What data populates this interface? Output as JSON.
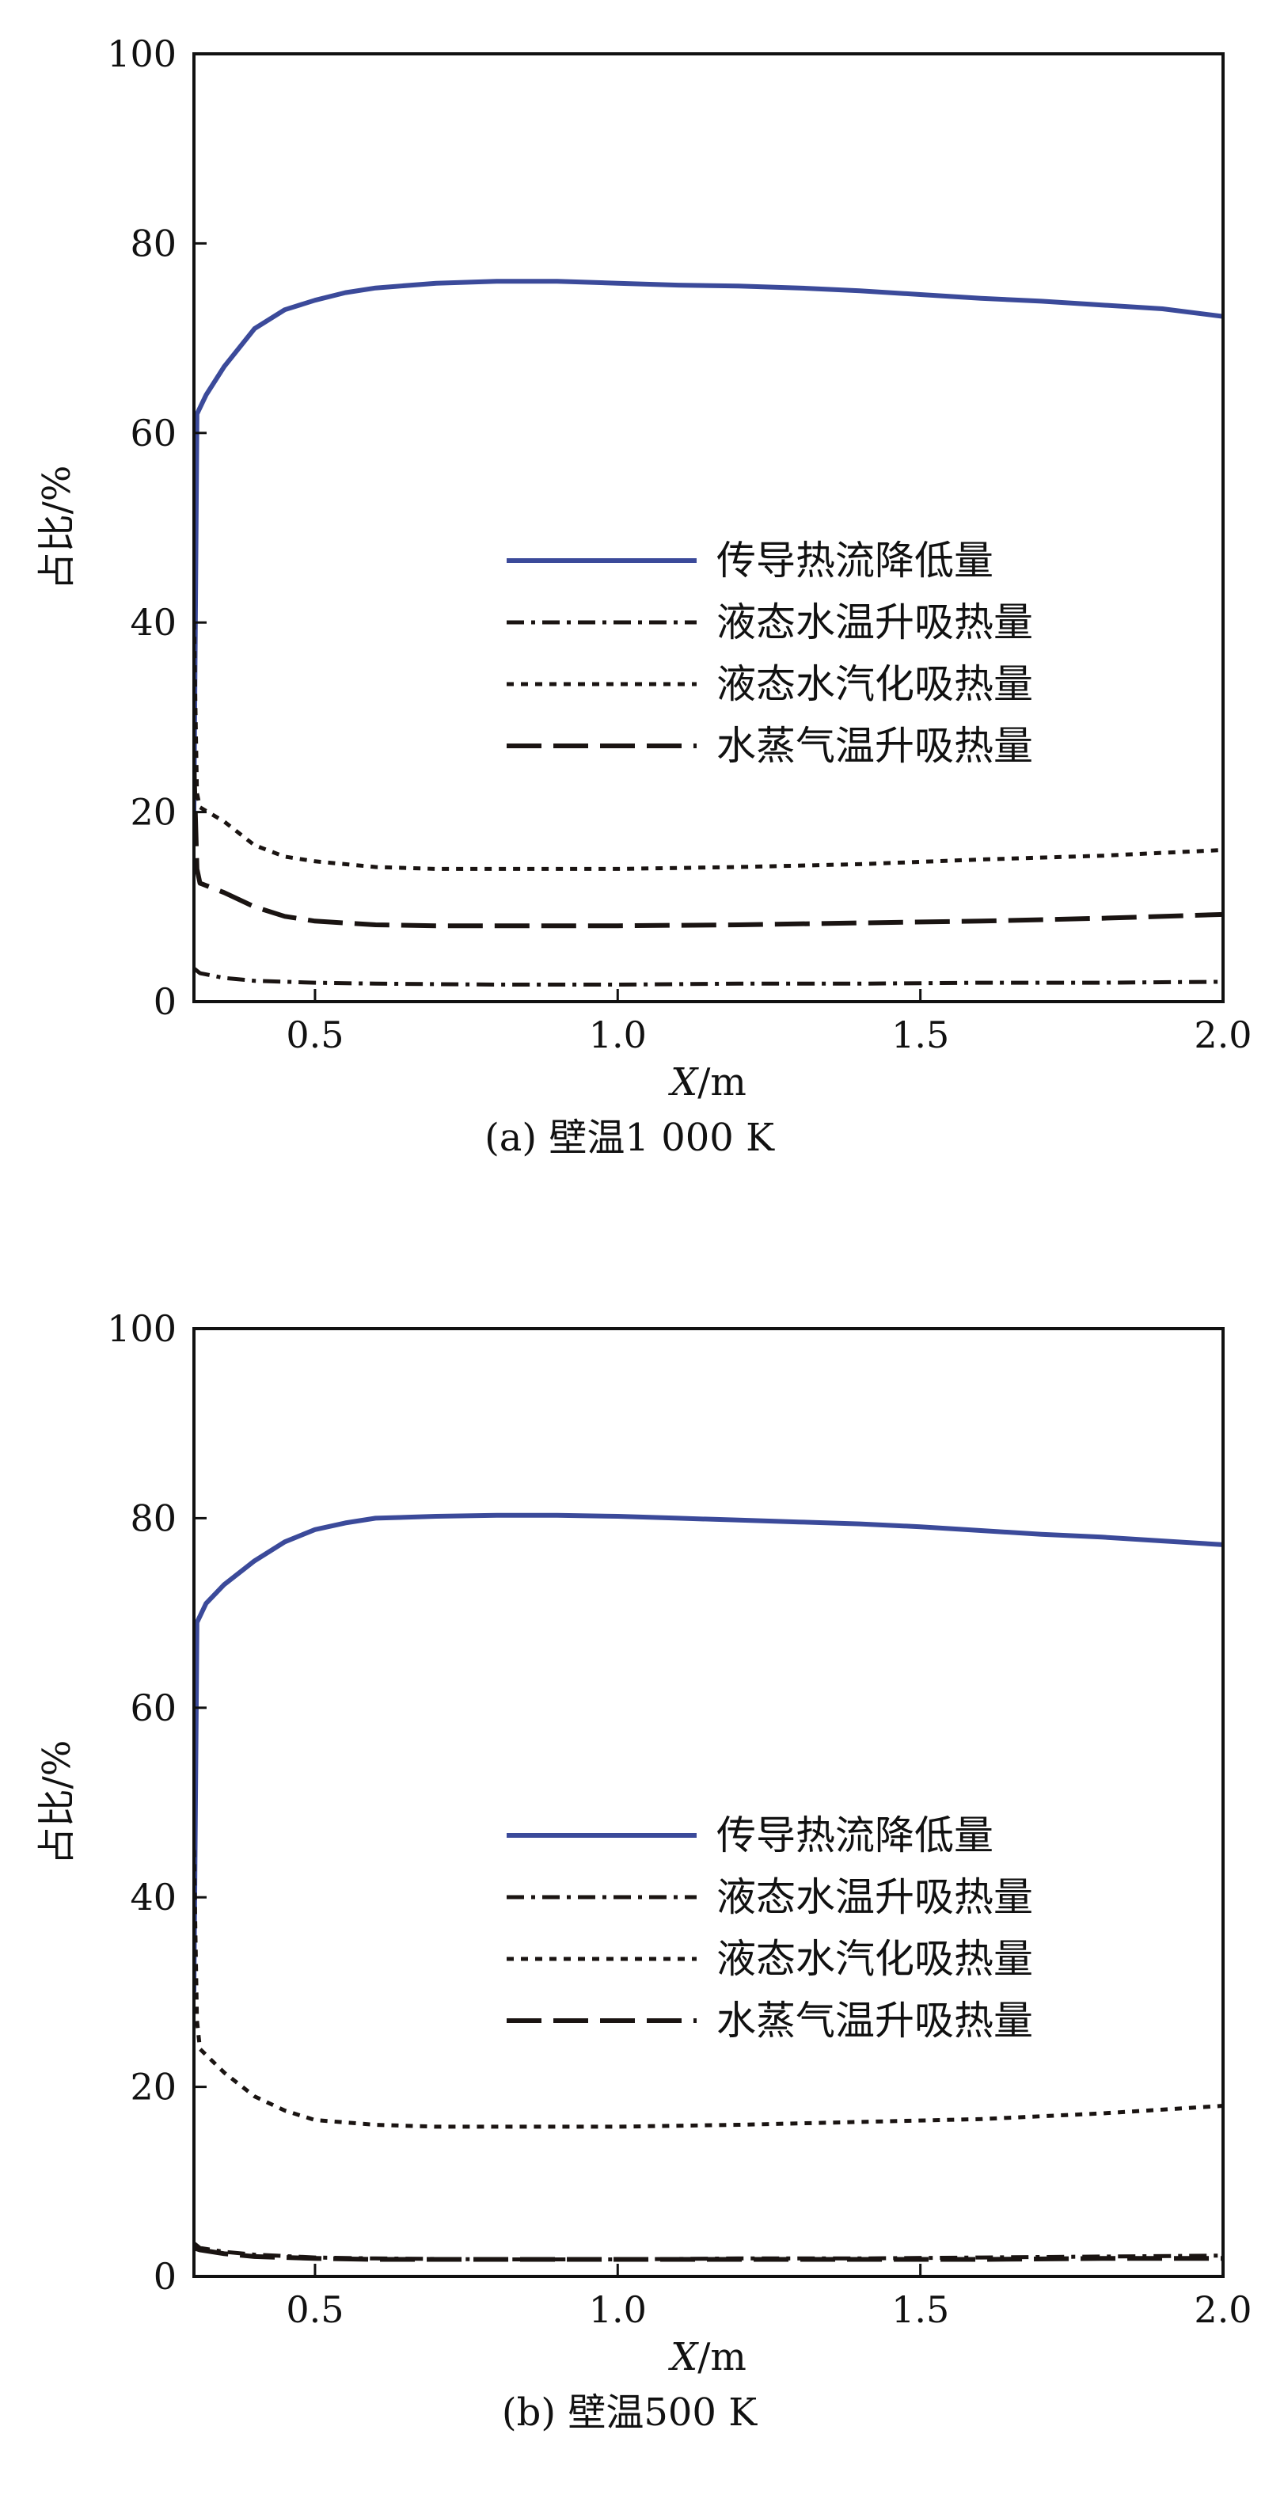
{
  "chart_data": [
    {
      "type": "line",
      "caption": "(a) 壁温1 000 K",
      "xlabel_italic": "X",
      "xlabel_unit": "/m",
      "ylabel": "占比/%",
      "xlim": [
        0.3,
        2.0
      ],
      "ylim": [
        0,
        100
      ],
      "x_ticks": [
        "0.5",
        "1.0",
        "1.5",
        "2.0"
      ],
      "x_tick_values": [
        0.5,
        1.0,
        1.5,
        2.0
      ],
      "y_ticks": [
        "0",
        "20",
        "40",
        "60",
        "80",
        "100"
      ],
      "y_tick_values": [
        0,
        20,
        40,
        60,
        80,
        100
      ],
      "grid": false,
      "legend_position": "center-right",
      "series": [
        {
          "name": "传导热流降低量",
          "style": "solid",
          "color": "#3b4a9a",
          "x": [
            0.3,
            0.305,
            0.32,
            0.35,
            0.4,
            0.45,
            0.5,
            0.55,
            0.6,
            0.7,
            0.8,
            0.9,
            1.0,
            1.1,
            1.2,
            1.3,
            1.4,
            1.5,
            1.6,
            1.7,
            1.8,
            1.9,
            2.0
          ],
          "y": [
            20,
            62,
            64,
            67,
            71,
            73,
            74,
            74.8,
            75.3,
            75.8,
            76,
            76,
            75.8,
            75.6,
            75.5,
            75.3,
            75,
            74.6,
            74.2,
            73.9,
            73.5,
            73.1,
            72.3
          ]
        },
        {
          "name": "液态水温升吸热量",
          "style": "dashdot",
          "color": "#1a1412",
          "x": [
            0.3,
            0.31,
            0.35,
            0.4,
            0.5,
            0.6,
            0.8,
            1.0,
            1.2,
            1.4,
            1.6,
            1.8,
            2.0
          ],
          "y": [
            3.5,
            3,
            2.5,
            2.2,
            2,
            1.9,
            1.8,
            1.8,
            1.9,
            1.9,
            2,
            2,
            2.1
          ]
        },
        {
          "name": "液态水汽化吸热量",
          "style": "dotted",
          "color": "#1a1412",
          "x": [
            0.3,
            0.305,
            0.31,
            0.35,
            0.4,
            0.45,
            0.5,
            0.6,
            0.7,
            0.8,
            0.9,
            1.0,
            1.2,
            1.4,
            1.6,
            1.8,
            2.0
          ],
          "y": [
            40,
            22,
            20.5,
            19,
            16.5,
            15.3,
            14.8,
            14.2,
            14,
            14,
            14,
            14,
            14.2,
            14.5,
            15,
            15.4,
            16
          ]
        },
        {
          "name": "水蒸气温升吸热量",
          "style": "dashed",
          "color": "#1a1412",
          "x": [
            0.3,
            0.305,
            0.31,
            0.35,
            0.4,
            0.45,
            0.5,
            0.6,
            0.7,
            0.8,
            1.0,
            1.2,
            1.4,
            1.6,
            1.8,
            2.0
          ],
          "y": [
            25,
            14,
            12.5,
            11.5,
            10,
            9,
            8.5,
            8.1,
            8,
            8,
            8,
            8.1,
            8.3,
            8.5,
            8.8,
            9.2
          ]
        }
      ]
    },
    {
      "type": "line",
      "caption": "(b) 壁温500 K",
      "xlabel_italic": "X",
      "xlabel_unit": "/m",
      "ylabel": "占比/%",
      "xlim": [
        0.3,
        2.0
      ],
      "ylim": [
        0,
        100
      ],
      "x_ticks": [
        "0.5",
        "1.0",
        "1.5",
        "2.0"
      ],
      "x_tick_values": [
        0.5,
        1.0,
        1.5,
        2.0
      ],
      "y_ticks": [
        "0",
        "20",
        "40",
        "60",
        "80",
        "100"
      ],
      "y_tick_values": [
        0,
        20,
        40,
        60,
        80,
        100
      ],
      "grid": false,
      "legend_position": "center-right",
      "series": [
        {
          "name": "传导热流降低量",
          "style": "solid",
          "color": "#3b4a9a",
          "x": [
            0.3,
            0.305,
            0.32,
            0.35,
            0.4,
            0.45,
            0.5,
            0.55,
            0.6,
            0.7,
            0.8,
            0.9,
            1.0,
            1.1,
            1.2,
            1.3,
            1.4,
            1.5,
            1.6,
            1.7,
            1.8,
            1.9,
            2.0
          ],
          "y": [
            30,
            69,
            71,
            73,
            75.5,
            77.5,
            78.8,
            79.5,
            80,
            80.2,
            80.3,
            80.3,
            80.2,
            80,
            79.8,
            79.6,
            79.4,
            79.1,
            78.7,
            78.3,
            78,
            77.6,
            77.2
          ]
        },
        {
          "name": "液态水温升吸热量",
          "style": "dashdot",
          "color": "#1a1412",
          "x": [
            0.3,
            0.31,
            0.35,
            0.4,
            0.5,
            0.6,
            0.8,
            1.0,
            1.2,
            1.4,
            1.6,
            1.8,
            2.0
          ],
          "y": [
            3.5,
            3,
            2.6,
            2.3,
            2,
            1.9,
            1.8,
            1.8,
            1.9,
            1.9,
            2,
            2.1,
            2.2
          ]
        },
        {
          "name": "液态水汽化吸热量",
          "style": "dotted",
          "color": "#1a1412",
          "x": [
            0.3,
            0.305,
            0.31,
            0.35,
            0.4,
            0.45,
            0.5,
            0.6,
            0.7,
            0.8,
            0.9,
            1.0,
            1.2,
            1.4,
            1.6,
            1.8,
            2.0
          ],
          "y": [
            45,
            27,
            24,
            21.5,
            19,
            17.5,
            16.5,
            16,
            15.8,
            15.8,
            15.8,
            15.8,
            16,
            16.3,
            16.6,
            17.2,
            18
          ]
        },
        {
          "name": "水蒸气温升吸热量",
          "style": "dashed",
          "color": "#1a1412",
          "x": [
            0.3,
            0.31,
            0.35,
            0.4,
            0.5,
            0.6,
            0.8,
            1.0,
            1.2,
            1.4,
            1.6,
            1.8,
            2.0
          ],
          "y": [
            3,
            2.8,
            2.4,
            2.1,
            1.9,
            1.8,
            1.8,
            1.8,
            1.8,
            1.8,
            1.8,
            1.9,
            1.9
          ]
        }
      ]
    }
  ]
}
